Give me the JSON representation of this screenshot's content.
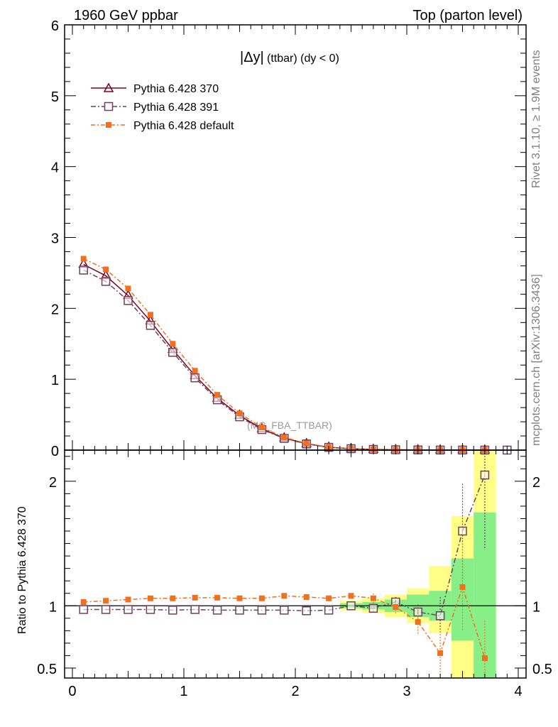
{
  "chart_data": {
    "type": "line",
    "header_left": "1960 GeV ppbar",
    "header_right": "Top (parton level)",
    "title_main": "|Δy|",
    "title_sub": "(ttbar) (dy < 0)",
    "side_text_1": "Rivet 3.1.10, ≥ 1.9M events",
    "side_text_2": "mcplots.cern.ch [arXiv:1306.3436]",
    "annotation": "(MC_FBA_TTBAR)",
    "ratio_ylabel": "Ratio to Pythia 6.428 370",
    "xlim": [
      -0.07,
      4.07
    ],
    "main_ylim": [
      0,
      6
    ],
    "ratio_ylim": [
      0.42,
      2.25
    ],
    "x_ticks": [
      0,
      1,
      2,
      3,
      4
    ],
    "main_y_ticks": [
      0,
      1,
      2,
      3,
      4,
      5,
      6
    ],
    "ratio_y_ticks": [
      0.5,
      1,
      2
    ],
    "ratio_y_tick_labels": [
      "0.5",
      "1",
      "2"
    ],
    "x": [
      0.1,
      0.3,
      0.5,
      0.7,
      0.9,
      1.1,
      1.3,
      1.5,
      1.7,
      1.9,
      2.1,
      2.3,
      2.5,
      2.7,
      2.9,
      3.1,
      3.3,
      3.5,
      3.7,
      3.9
    ],
    "series": [
      {
        "name": "Pythia 6.428 370",
        "color": "#800020",
        "marker": "triangle",
        "dash": "",
        "values": [
          2.62,
          2.46,
          2.18,
          1.82,
          1.42,
          1.05,
          0.73,
          0.49,
          0.3,
          0.17,
          0.09,
          0.04,
          0.02,
          0.01,
          0.005,
          0.0025,
          0.001,
          0.0005,
          0.0002,
          null
        ],
        "ratio": [
          1.0,
          1.0,
          1.0,
          1.0,
          1.0,
          1.0,
          1.0,
          1.0,
          1.0,
          1.0,
          1.0,
          1.0,
          1.0,
          1.0,
          1.0,
          1.0,
          1.0,
          1.0,
          1.0,
          null
        ]
      },
      {
        "name": "Pythia 6.428 391",
        "color": "#70405a",
        "marker": "square",
        "dash": "7,3,2,3",
        "values": [
          2.54,
          2.38,
          2.11,
          1.76,
          1.38,
          1.02,
          0.71,
          0.47,
          0.29,
          0.165,
          0.087,
          0.039,
          0.02,
          0.01,
          0.005,
          0.0024,
          0.0009,
          0.0008,
          0.0004,
          0.0002
        ],
        "ratio": [
          0.97,
          0.97,
          0.97,
          0.97,
          0.965,
          0.97,
          0.965,
          0.965,
          0.965,
          0.965,
          0.96,
          0.965,
          1.0,
          0.98,
          1.03,
          0.95,
          0.92,
          1.6,
          2.05,
          null
        ]
      },
      {
        "name": "Pythia 6.428 default",
        "color": "#f07020",
        "marker": "filled-square",
        "dash": "6,3,2,3",
        "values": [
          2.7,
          2.55,
          2.28,
          1.91,
          1.5,
          1.12,
          0.78,
          0.52,
          0.32,
          0.18,
          0.095,
          0.042,
          0.022,
          0.011,
          0.005,
          0.0022,
          0.0006,
          0.0006,
          0.0001,
          null
        ],
        "ratio": [
          1.03,
          1.04,
          1.05,
          1.06,
          1.06,
          1.065,
          1.065,
          1.06,
          1.06,
          1.08,
          1.07,
          1.06,
          1.08,
          1.06,
          0.99,
          0.87,
          0.62,
          1.15,
          0.58,
          null
        ]
      }
    ],
    "ratio_errors": {
      "Pythia 6.428 391": [
        null,
        null,
        null,
        null,
        null,
        null,
        null,
        null,
        null,
        null,
        null,
        null,
        null,
        0.03,
        0.04,
        0.06,
        0.15,
        0.38,
        0.6,
        null
      ],
      "Pythia 6.428 default": [
        null,
        null,
        null,
        null,
        null,
        null,
        null,
        null,
        null,
        null,
        null,
        null,
        0.02,
        0.04,
        0.05,
        0.1,
        0.2,
        0.35,
        0.3,
        null
      ]
    },
    "band_edges": [
      2.4,
      2.6,
      2.8,
      3.0,
      3.2,
      3.4,
      3.6,
      3.8
    ],
    "band_inner": [
      [
        0.98,
        1.02
      ],
      [
        0.97,
        1.03
      ],
      [
        0.95,
        1.05
      ],
      [
        0.91,
        1.09
      ],
      [
        0.88,
        1.12
      ],
      [
        0.72,
        1.38
      ],
      [
        0.42,
        1.75
      ]
    ],
    "band_outer": [
      [
        0.96,
        1.04
      ],
      [
        0.94,
        1.06
      ],
      [
        0.91,
        1.09
      ],
      [
        0.86,
        1.14
      ],
      [
        0.78,
        1.32
      ],
      [
        0.42,
        1.72
      ],
      [
        0.42,
        2.25
      ]
    ],
    "band_colors": {
      "inner": "#88ee88",
      "outer": "#ffff88"
    }
  }
}
